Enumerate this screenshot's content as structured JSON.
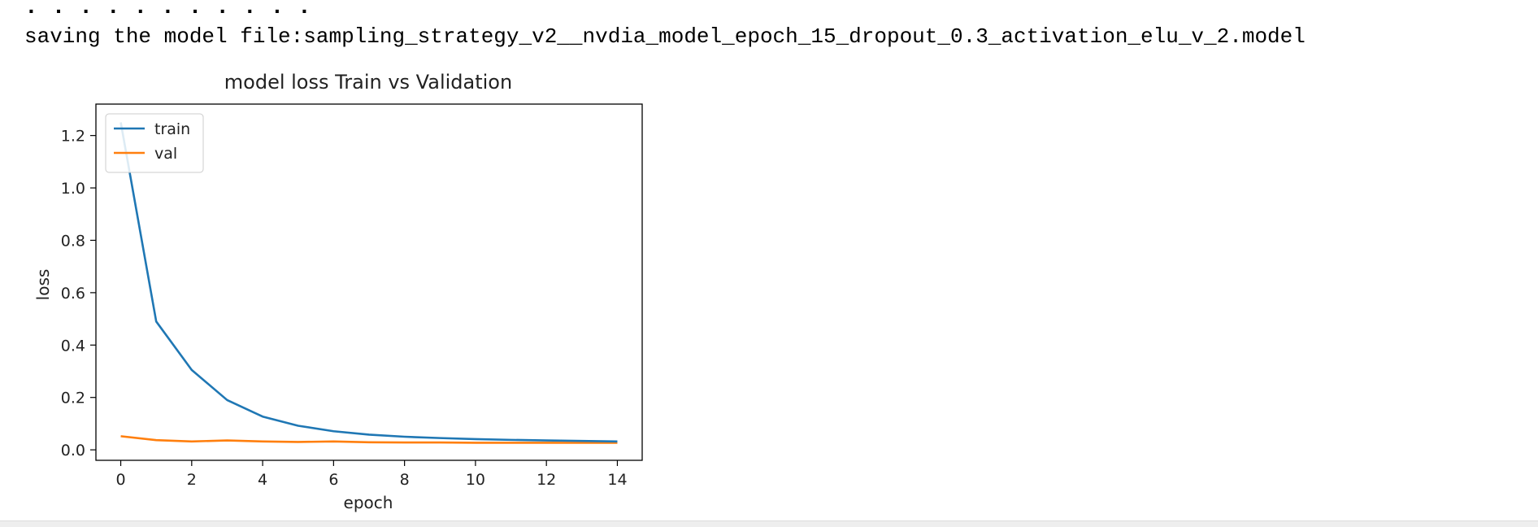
{
  "output": {
    "progress_dots": ". . . . . . . . . . .",
    "save_message": "saving the model file:sampling_strategy_v2__nvdia_model_epoch_15_dropout_0.3_activation_elu_v_2.model"
  },
  "chart_data": {
    "type": "line",
    "title": "model loss Train vs Validation",
    "xlabel": "epoch",
    "ylabel": "loss",
    "xlim": [
      -0.7,
      14.7
    ],
    "ylim": [
      -0.04,
      1.32
    ],
    "xticks": [
      0,
      2,
      4,
      6,
      8,
      10,
      12,
      14
    ],
    "yticks": [
      0.0,
      0.2,
      0.4,
      0.6,
      0.8,
      1.0,
      1.2
    ],
    "ytick_labels": [
      "0.0",
      "0.2",
      "0.4",
      "0.6",
      "0.8",
      "1.0",
      "1.2"
    ],
    "x": [
      0,
      1,
      2,
      3,
      4,
      5,
      6,
      7,
      8,
      9,
      10,
      11,
      12,
      13,
      14
    ],
    "series": [
      {
        "name": "train",
        "color": "#1f77b4",
        "values": [
          1.25,
          0.49,
          0.305,
          0.19,
          0.127,
          0.092,
          0.071,
          0.058,
          0.05,
          0.045,
          0.041,
          0.038,
          0.036,
          0.034,
          0.032
        ]
      },
      {
        "name": "val",
        "color": "#ff7f0e",
        "values": [
          0.052,
          0.037,
          0.032,
          0.036,
          0.032,
          0.03,
          0.032,
          0.029,
          0.028,
          0.028,
          0.027,
          0.027,
          0.027,
          0.027,
          0.027
        ]
      }
    ],
    "legend_position": "upper left",
    "grid": false
  }
}
